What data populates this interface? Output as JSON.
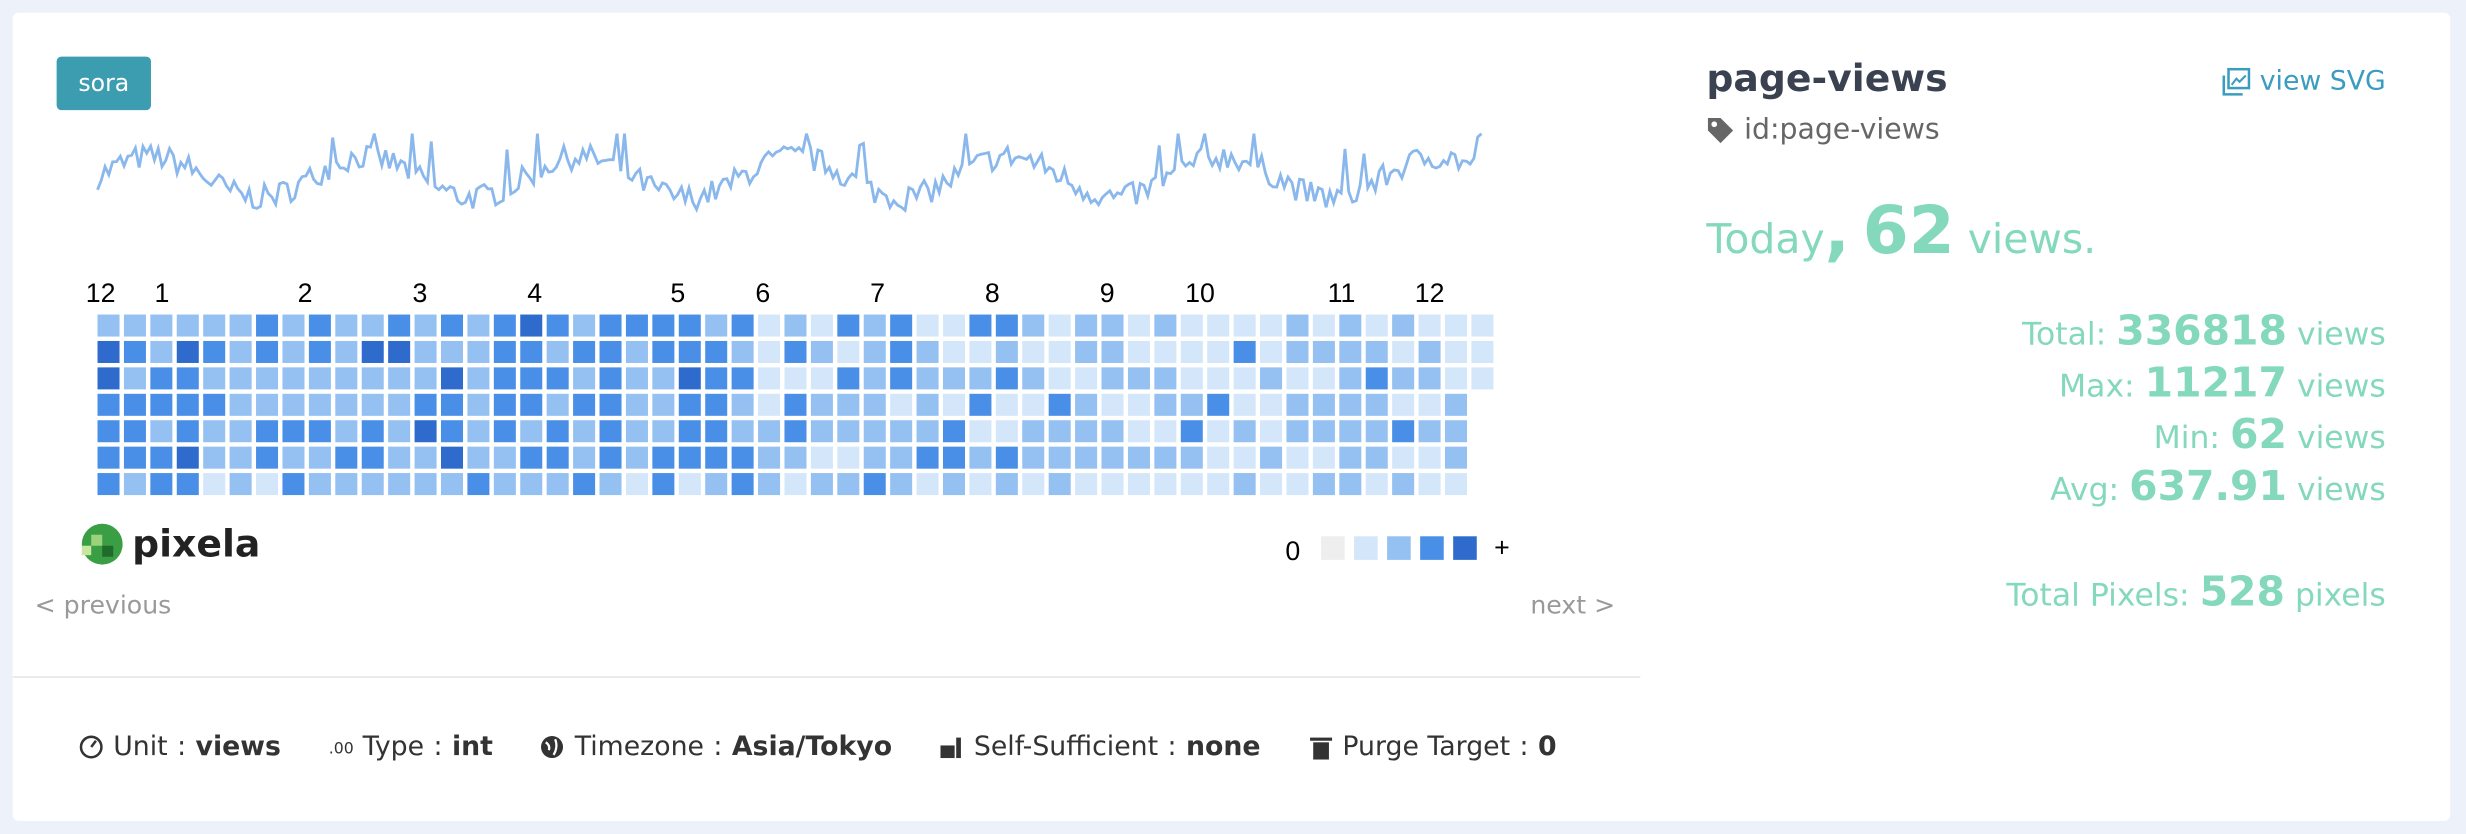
{
  "badge": "sora",
  "months": [
    "12",
    "1",
    "2",
    "3",
    "4",
    "5",
    "6",
    "7",
    "8",
    "9",
    "10",
    "11",
    "12"
  ],
  "legend": {
    "low": "0",
    "high": "+"
  },
  "nav": {
    "previous": "< previous",
    "next": "next >"
  },
  "footer": [
    {
      "label": "Unit",
      "sep": ":",
      "value": "views"
    },
    {
      "label": "Type",
      "sep": ":",
      "value": "int"
    },
    {
      "label": "Timezone",
      "sep": ":",
      "value": "Asia/Tokyo"
    },
    {
      "label": "Self-Sufficient",
      "sep": ":",
      "value": "none"
    },
    {
      "label": "Purge Target",
      "sep": ":",
      "value": "0"
    }
  ],
  "graph": {
    "name": "page-views",
    "id": "id:page-views",
    "view_svg": "view SVG"
  },
  "today": {
    "prefix": "Today",
    "comma": ",",
    "value": 62,
    "unit": "views."
  },
  "stats": [
    {
      "label": "Total:",
      "value": 336818,
      "unit": "views"
    },
    {
      "label": "Max:",
      "value": 11217,
      "unit": "views"
    },
    {
      "label": "Min:",
      "value": 62,
      "unit": "views"
    },
    {
      "label": "Avg:",
      "value": 637.91,
      "unit": "views"
    }
  ],
  "total_pixels": {
    "label": "Total Pixels:",
    "value": 528,
    "unit": "pixels"
  }
}
